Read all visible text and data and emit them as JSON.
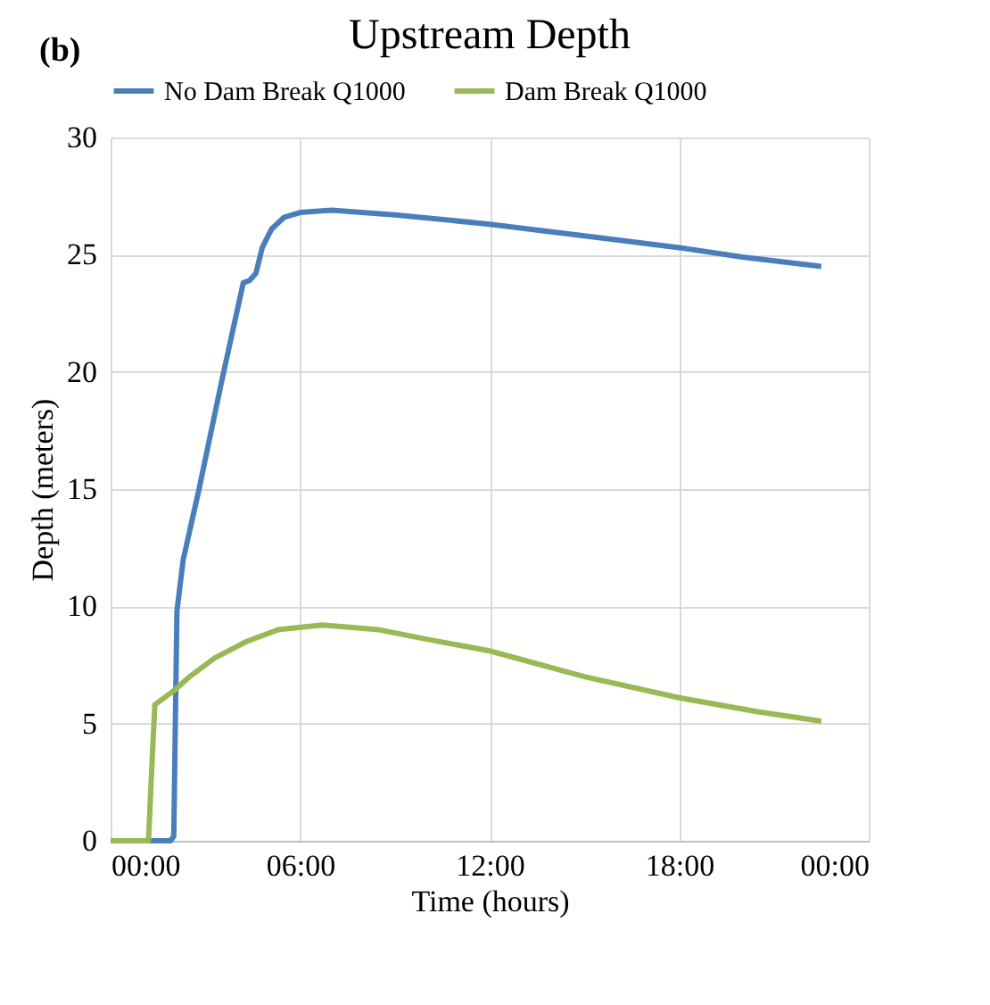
{
  "chart_data": {
    "type": "line",
    "title": "Upstream Depth",
    "xlabel": "Time (hours)",
    "ylabel": "Depth (meters)",
    "annotations": [
      "(b)"
    ],
    "xlim": [
      0,
      24
    ],
    "xticks": [
      {
        "value": 0,
        "label": "00:00"
      },
      {
        "value": 6,
        "label": "06:00"
      },
      {
        "value": 12,
        "label": "12:00"
      },
      {
        "value": 18,
        "label": "18:00"
      },
      {
        "value": 24,
        "label": "00:00"
      }
    ],
    "ylim": [
      0,
      30
    ],
    "yticks": [
      0,
      5,
      10,
      15,
      20,
      25,
      30
    ],
    "grid": true,
    "legend": "top",
    "marker": "none",
    "line_style": "solid",
    "series": [
      {
        "name": "No Dam Break Q1000",
        "color": "#4a7ebb",
        "x": [
          0,
          1.9,
          2.0,
          2.1,
          2.3,
          2.8,
          3.5,
          4.2,
          4.4,
          4.6,
          4.8,
          5.1,
          5.5,
          6.0,
          7.0,
          9.0,
          12.0,
          15.0,
          18.0,
          20.0,
          22.5
        ],
        "values": [
          0,
          0,
          0.2,
          9.8,
          12,
          15,
          19.5,
          23.8,
          23.9,
          24.2,
          25.3,
          26.1,
          26.6,
          26.8,
          26.9,
          26.7,
          26.3,
          25.8,
          25.3,
          24.9,
          24.5
        ]
      },
      {
        "name": "Dam Break Q1000",
        "color": "#98b954",
        "x": [
          0,
          1.2,
          1.3,
          1.4,
          2.0,
          2.5,
          3.3,
          4.3,
          5.3,
          6.7,
          8.5,
          10.0,
          12.0,
          15.0,
          18.0,
          20.5,
          22.5
        ],
        "values": [
          0,
          0,
          3,
          5.8,
          6.4,
          7,
          7.8,
          8.5,
          9,
          9.2,
          9,
          8.6,
          8.1,
          7,
          6.1,
          5.5,
          5.1
        ]
      }
    ]
  }
}
